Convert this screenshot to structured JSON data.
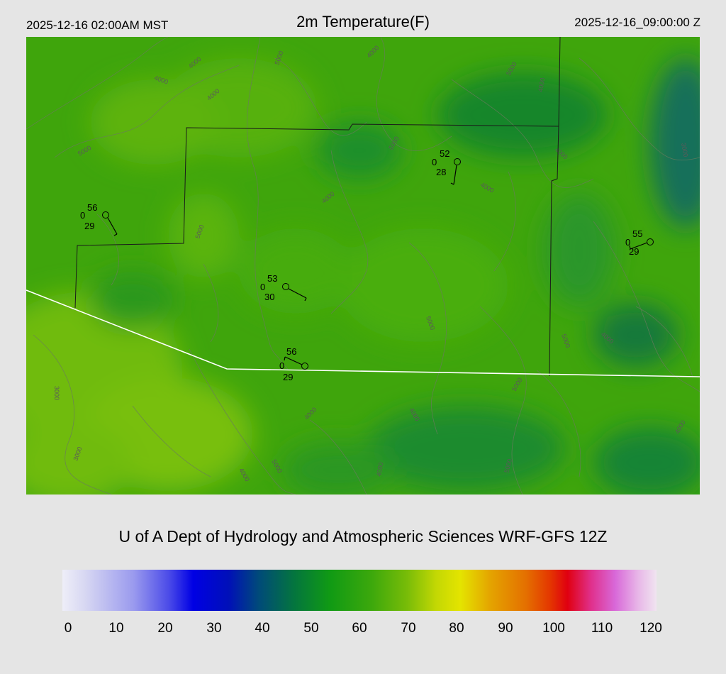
{
  "header": {
    "local_time": "2025-12-16 02:00AM MST",
    "title": "2m Temperature(F)",
    "utc_time": "2025-12-16_09:00:00 Z"
  },
  "credit": "U of A Dept of Hydrology and Atmospheric Sciences WRF-GFS 12Z",
  "colorbar": {
    "ticks": [
      "0",
      "10",
      "20",
      "30",
      "40",
      "50",
      "60",
      "70",
      "80",
      "90",
      "100",
      "110",
      "120"
    ]
  },
  "stations": [
    {
      "temp": "56",
      "dew": "29",
      "wind": "0"
    },
    {
      "temp": "52",
      "dew": "28",
      "wind": "0"
    },
    {
      "temp": "53",
      "dew": "30",
      "wind": "0"
    },
    {
      "temp": "56",
      "dew": "29",
      "wind": "0"
    },
    {
      "temp": "55",
      "dew": "29",
      "wind": "0"
    }
  ],
  "contour_labels": [
    "4000",
    "4000",
    "4000",
    "5000",
    "4000",
    "5000",
    "5000",
    "4000",
    "4000",
    "5000",
    "4000",
    "3000",
    "4000",
    "5000",
    "5000",
    "4000",
    "3000",
    "3000",
    "4000",
    "4000",
    "5000",
    "5000",
    "4000",
    "5000",
    "4000",
    "4000",
    "5000"
  ]
}
